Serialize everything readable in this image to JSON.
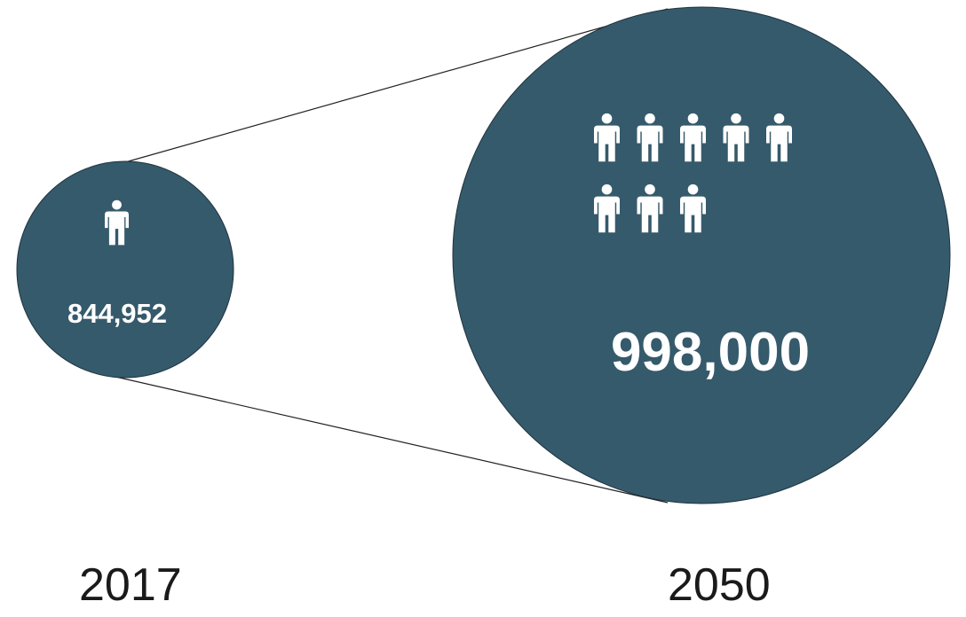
{
  "colors": {
    "circle_fill": "#355A6B",
    "circle_stroke": "#1f3340",
    "icon_fill": "#ffffff",
    "connector_line": "#222222",
    "text_dark": "#1a1a1a"
  },
  "icon": "person-icon",
  "comparison": {
    "left": {
      "year": "2017",
      "value": "844,952",
      "person_icons": 1
    },
    "right": {
      "year": "2050",
      "value": "998,000",
      "person_icons": 8
    }
  }
}
